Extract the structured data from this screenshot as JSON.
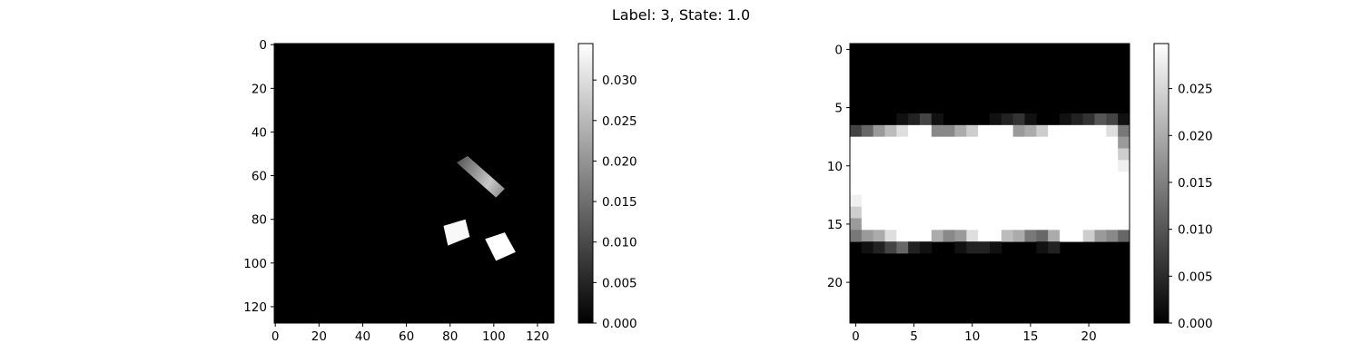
{
  "title": "Label: 3, State: 1.0",
  "colors": {
    "colormap": "gray",
    "frame": "#000000",
    "background": "#ffffff"
  },
  "chart_data": [
    {
      "type": "heatmap",
      "title": "",
      "xlabel": "",
      "ylabel": "",
      "shape": [
        128,
        128
      ],
      "x_ticks": [
        "0",
        "20",
        "40",
        "60",
        "80",
        "100",
        "120"
      ],
      "y_ticks": [
        "0",
        "20",
        "40",
        "60",
        "80",
        "100",
        "120"
      ],
      "colorbar": {
        "range": [
          0,
          0.0345
        ],
        "ticks": [
          "0.000",
          "0.005",
          "0.010",
          "0.015",
          "0.020",
          "0.025",
          "0.030"
        ]
      },
      "shapes": [
        {
          "kind": "gradient_bar",
          "corners": [
            [
              83,
              54
            ],
            [
              88,
              51
            ],
            [
              105,
              66
            ],
            [
              101,
              70
            ]
          ],
          "value_range": [
            0.012,
            0.027
          ]
        },
        {
          "kind": "square",
          "corners": [
            [
              77,
              83
            ],
            [
              87,
              80
            ],
            [
              89,
              88
            ],
            [
              79,
              92
            ]
          ],
          "value": 0.0335
        },
        {
          "kind": "square",
          "corners": [
            [
              96,
              89
            ],
            [
              105,
              86
            ],
            [
              110,
              95
            ],
            [
              101,
              99
            ]
          ],
          "value": 0.0345
        }
      ]
    },
    {
      "type": "heatmap",
      "title": "",
      "xlabel": "",
      "ylabel": "",
      "shape": [
        24,
        24
      ],
      "x_ticks": [
        "0",
        "5",
        "10",
        "15",
        "20"
      ],
      "y_ticks": [
        "0",
        "5",
        "10",
        "15",
        "20"
      ],
      "colorbar": {
        "range": [
          0,
          0.0298
        ],
        "ticks": [
          "0.000",
          "0.005",
          "0.010",
          "0.015",
          "0.020",
          "0.025"
        ]
      },
      "values": [
        [
          0,
          0,
          0,
          0,
          0,
          0,
          0,
          0,
          0,
          0,
          0,
          0,
          0,
          0,
          0,
          0,
          0,
          0,
          0,
          0,
          0,
          0,
          0,
          0
        ],
        [
          0,
          0,
          0,
          0,
          0,
          0,
          0,
          0,
          0,
          0,
          0,
          0,
          0,
          0,
          0,
          0,
          0,
          0,
          0,
          0,
          0,
          0,
          0,
          0
        ],
        [
          0,
          0,
          0,
          0,
          0,
          0,
          0,
          0,
          0,
          0,
          0,
          0,
          0,
          0,
          0,
          0,
          0,
          0,
          0,
          0,
          0,
          0,
          0,
          0
        ],
        [
          0,
          0,
          0,
          0,
          0,
          0,
          0,
          0,
          0,
          0,
          0,
          0,
          0,
          0,
          0,
          0,
          0,
          0,
          0,
          0,
          0,
          0,
          0,
          0
        ],
        [
          0,
          0,
          0,
          0,
          0,
          0,
          0,
          0,
          0,
          0,
          0,
          0,
          0,
          0,
          0,
          0,
          0,
          0,
          0,
          0,
          0,
          0,
          0,
          0
        ],
        [
          0,
          0,
          0,
          0,
          0,
          0,
          0,
          0,
          0,
          0,
          0,
          0,
          0,
          0,
          0,
          0,
          0,
          0,
          0,
          0,
          0,
          0,
          0,
          0
        ],
        [
          0,
          0,
          0,
          0,
          0.002,
          0.004,
          0.008,
          0.002,
          0,
          0,
          0,
          0,
          0.002,
          0.004,
          0.006,
          0.002,
          0,
          0,
          0.002,
          0.004,
          0.006,
          0.01,
          0.008,
          0.002
        ],
        [
          0.008,
          0.012,
          0.018,
          0.022,
          0.026,
          0.03,
          0.03,
          0.016,
          0.016,
          0.02,
          0.024,
          0.03,
          0.03,
          0.03,
          0.018,
          0.02,
          0.024,
          0.03,
          0.03,
          0.03,
          0.03,
          0.03,
          0.026,
          0.014
        ],
        [
          0.03,
          0.03,
          0.03,
          0.03,
          0.03,
          0.03,
          0.03,
          0.03,
          0.03,
          0.03,
          0.03,
          0.03,
          0.03,
          0.03,
          0.03,
          0.03,
          0.03,
          0.03,
          0.03,
          0.03,
          0.03,
          0.03,
          0.03,
          0.018
        ],
        [
          0.03,
          0.03,
          0.03,
          0.03,
          0.03,
          0.03,
          0.03,
          0.03,
          0.03,
          0.03,
          0.03,
          0.03,
          0.03,
          0.03,
          0.03,
          0.03,
          0.03,
          0.03,
          0.03,
          0.03,
          0.03,
          0.03,
          0.03,
          0.024
        ],
        [
          0.03,
          0.03,
          0.03,
          0.03,
          0.03,
          0.03,
          0.03,
          0.03,
          0.03,
          0.03,
          0.03,
          0.03,
          0.03,
          0.03,
          0.03,
          0.03,
          0.03,
          0.03,
          0.03,
          0.03,
          0.03,
          0.03,
          0.03,
          0.028
        ],
        [
          0.03,
          0.03,
          0.03,
          0.03,
          0.03,
          0.03,
          0.03,
          0.03,
          0.03,
          0.03,
          0.03,
          0.03,
          0.03,
          0.03,
          0.03,
          0.03,
          0.03,
          0.03,
          0.03,
          0.03,
          0.03,
          0.03,
          0.03,
          0.03
        ],
        [
          0.03,
          0.03,
          0.03,
          0.03,
          0.03,
          0.03,
          0.03,
          0.03,
          0.03,
          0.03,
          0.03,
          0.03,
          0.03,
          0.03,
          0.03,
          0.03,
          0.03,
          0.03,
          0.03,
          0.03,
          0.03,
          0.03,
          0.03,
          0.03
        ],
        [
          0.028,
          0.03,
          0.03,
          0.03,
          0.03,
          0.03,
          0.03,
          0.03,
          0.03,
          0.03,
          0.03,
          0.03,
          0.03,
          0.03,
          0.03,
          0.03,
          0.03,
          0.03,
          0.03,
          0.03,
          0.03,
          0.03,
          0.03,
          0.03
        ],
        [
          0.024,
          0.03,
          0.03,
          0.03,
          0.03,
          0.03,
          0.03,
          0.03,
          0.03,
          0.03,
          0.03,
          0.03,
          0.03,
          0.03,
          0.03,
          0.03,
          0.03,
          0.03,
          0.03,
          0.03,
          0.03,
          0.03,
          0.03,
          0.03
        ],
        [
          0.018,
          0.03,
          0.03,
          0.03,
          0.03,
          0.03,
          0.03,
          0.03,
          0.03,
          0.03,
          0.03,
          0.03,
          0.03,
          0.03,
          0.03,
          0.03,
          0.03,
          0.03,
          0.03,
          0.03,
          0.03,
          0.03,
          0.03,
          0.03
        ],
        [
          0.014,
          0.018,
          0.02,
          0.026,
          0.03,
          0.03,
          0.03,
          0.02,
          0.016,
          0.018,
          0.026,
          0.03,
          0.03,
          0.022,
          0.02,
          0.014,
          0.012,
          0.02,
          0.03,
          0.03,
          0.024,
          0.018,
          0.016,
          0.012
        ],
        [
          0,
          0.002,
          0.004,
          0.008,
          0.012,
          0.004,
          0.002,
          0,
          0,
          0.002,
          0.004,
          0.004,
          0.002,
          0,
          0,
          0,
          0.002,
          0.004,
          0,
          0,
          0,
          0,
          0,
          0
        ],
        [
          0,
          0,
          0,
          0,
          0,
          0,
          0,
          0,
          0,
          0,
          0,
          0,
          0,
          0,
          0,
          0,
          0,
          0,
          0,
          0,
          0,
          0,
          0,
          0
        ],
        [
          0,
          0,
          0,
          0,
          0,
          0,
          0,
          0,
          0,
          0,
          0,
          0,
          0,
          0,
          0,
          0,
          0,
          0,
          0,
          0,
          0,
          0,
          0,
          0
        ],
        [
          0,
          0,
          0,
          0,
          0,
          0,
          0,
          0,
          0,
          0,
          0,
          0,
          0,
          0,
          0,
          0,
          0,
          0,
          0,
          0,
          0,
          0,
          0,
          0
        ],
        [
          0,
          0,
          0,
          0,
          0,
          0,
          0,
          0,
          0,
          0,
          0,
          0,
          0,
          0,
          0,
          0,
          0,
          0,
          0,
          0,
          0,
          0,
          0,
          0
        ],
        [
          0,
          0,
          0,
          0,
          0,
          0,
          0,
          0,
          0,
          0,
          0,
          0,
          0,
          0,
          0,
          0,
          0,
          0,
          0,
          0,
          0,
          0,
          0,
          0
        ],
        [
          0,
          0,
          0,
          0,
          0,
          0,
          0,
          0,
          0,
          0,
          0,
          0,
          0,
          0,
          0,
          0,
          0,
          0,
          0,
          0,
          0,
          0,
          0,
          0
        ]
      ]
    }
  ]
}
